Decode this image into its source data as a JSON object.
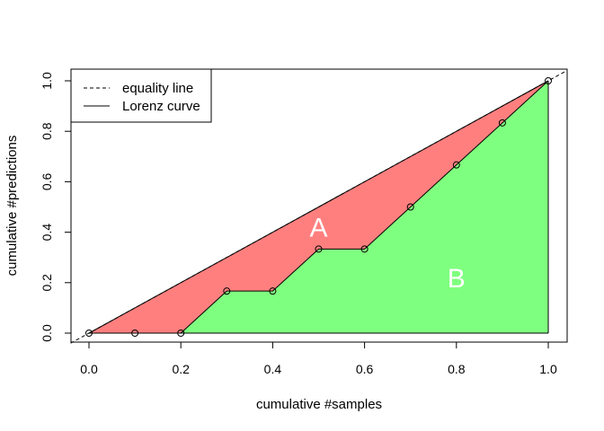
{
  "chart_data": {
    "type": "area",
    "xlabel": "cumulative #samples",
    "ylabel": "cumulative #predictions",
    "xlim": [
      -0.04,
      1.04
    ],
    "ylim": [
      -0.04,
      1.04
    ],
    "x_ticks": [
      "0.0",
      "0.2",
      "0.4",
      "0.6",
      "0.8",
      "1.0"
    ],
    "y_ticks": [
      "0.0",
      "0.2",
      "0.4",
      "0.6",
      "0.8",
      "1.0"
    ],
    "grid": false,
    "legend": {
      "position": "top-left",
      "entries": [
        {
          "label": "equality line",
          "line_style": "dashed"
        },
        {
          "label": "Lorenz curve",
          "line_style": "solid"
        }
      ]
    },
    "series": [
      {
        "name": "equality line",
        "x": [
          0,
          1
        ],
        "y": [
          0,
          1
        ]
      },
      {
        "name": "Lorenz curve",
        "x": [
          0.0,
          0.1,
          0.2,
          0.3,
          0.4,
          0.5,
          0.6,
          0.7,
          0.8,
          0.9,
          1.0
        ],
        "y": [
          0.0,
          0.0,
          0.0,
          0.1667,
          0.1667,
          0.3333,
          0.3333,
          0.5,
          0.6667,
          0.8333,
          1.0
        ]
      }
    ],
    "regions": [
      {
        "label": "A",
        "color": "#ff7f7f",
        "x": 0.5,
        "y": 0.41
      },
      {
        "label": "B",
        "color": "#7fff7f",
        "x": 0.8,
        "y": 0.21
      }
    ]
  }
}
